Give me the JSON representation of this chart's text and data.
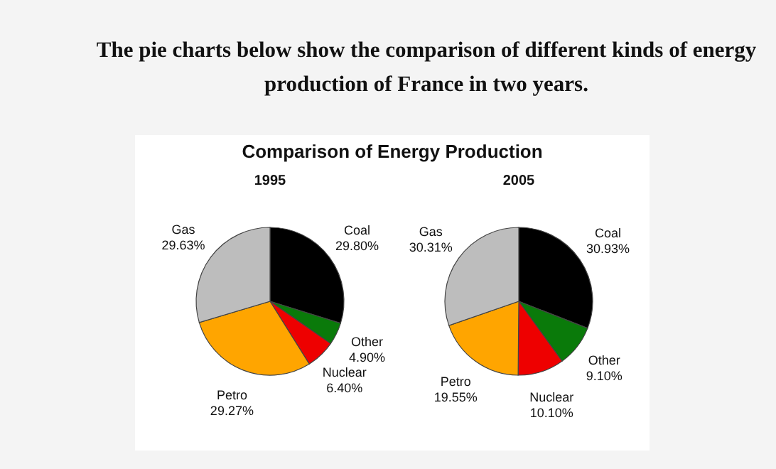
{
  "chart_data": [
    {
      "type": "other",
      "title": "The pie charts below show the comparison of different kinds of energy production of France in two years.",
      "subtitle": "Comparison of Energy Production"
    },
    {
      "type": "pie",
      "title": "1995",
      "categories": [
        "Coal",
        "Other",
        "Nuclear",
        "Petro",
        "Gas"
      ],
      "values": [
        29.8,
        4.9,
        6.4,
        29.27,
        29.63
      ],
      "value_labels": [
        "29.80%",
        "4.90%",
        "6.40%",
        "29.27%",
        "29.63%"
      ],
      "colors": [
        "#000000",
        "#0a7a0a",
        "#ee0000",
        "#ffa500",
        "#bdbdbd"
      ]
    },
    {
      "type": "pie",
      "title": "2005",
      "categories": [
        "Coal",
        "Other",
        "Nuclear",
        "Petro",
        "Gas"
      ],
      "values": [
        30.93,
        9.1,
        10.1,
        19.55,
        30.31
      ],
      "value_labels": [
        "30.93%",
        "9.10%",
        "10.10%",
        "19.55%",
        "30.31%"
      ],
      "colors": [
        "#000000",
        "#0a7a0a",
        "#ee0000",
        "#ffa500",
        "#bdbdbd"
      ]
    }
  ]
}
